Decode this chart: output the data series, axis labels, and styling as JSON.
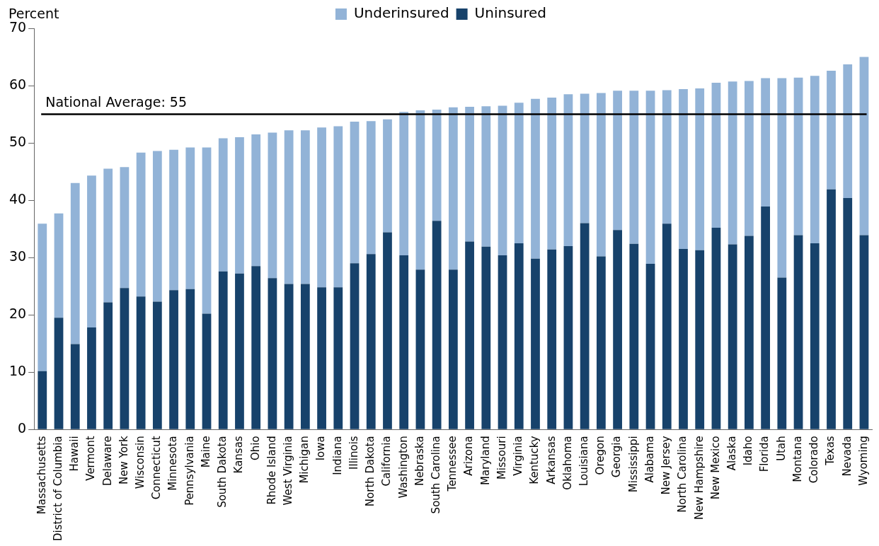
{
  "chart_data": {
    "type": "bar",
    "stacked": true,
    "ylabel": "Percent",
    "legend": "top",
    "categories": [
      "Massachusetts",
      "District of Columbia",
      "Hawaii",
      "Vermont",
      "Delaware",
      "New York",
      "Wisconsin",
      "Connecticut",
      "Minnesota",
      "Pennsylvania",
      "Maine",
      "South Dakota",
      "Kansas",
      "Ohio",
      "Rhode Island",
      "West Virginia",
      "Michigan",
      "Iowa",
      "Indiana",
      "Illinois",
      "North Dakota",
      "California",
      "Washington",
      "Nebraska",
      "South Carolina",
      "Tennessee",
      "Arizona",
      "Maryland",
      "Missouri",
      "Virginia",
      "Kentucky",
      "Arkansas",
      "Oklahoma",
      "Louisiana",
      "Oregon",
      "Georgia",
      "Mississippi",
      "Alabama",
      "New Jersey",
      "North Carolina",
      "New Hampshire",
      "New Mexico",
      "Alaska",
      "Idaho",
      "Florida",
      "Utah",
      "Montana",
      "Colorado",
      "Texas",
      "Nevada",
      "Wyoming"
    ],
    "series": [
      {
        "name": "Uninsured",
        "color": "#17426b",
        "values": [
          10.2,
          19.5,
          14.9,
          17.8,
          22.2,
          24.7,
          23.2,
          22.3,
          24.3,
          24.5,
          20.2,
          27.6,
          27.2,
          28.5,
          26.4,
          25.4,
          25.4,
          24.8,
          24.8,
          29.0,
          30.6,
          34.4,
          30.4,
          27.9,
          36.4,
          27.9,
          32.8,
          31.9,
          30.4,
          32.5,
          29.8,
          31.4,
          32.0,
          36.0,
          30.2,
          34.8,
          32.4,
          28.9,
          35.9,
          31.5,
          31.3,
          35.2,
          32.3,
          33.8,
          38.9,
          26.5,
          33.9,
          32.5,
          41.9,
          40.4,
          33.9
        ]
      },
      {
        "name": "Underinsured",
        "color": "#92b3d7",
        "values": [
          25.7,
          18.2,
          28.1,
          26.5,
          23.3,
          21.1,
          25.1,
          26.3,
          24.5,
          24.7,
          29.0,
          23.2,
          23.8,
          23.0,
          25.4,
          26.8,
          26.8,
          27.9,
          28.1,
          24.7,
          23.2,
          19.7,
          25.0,
          27.8,
          19.4,
          28.3,
          23.5,
          24.5,
          26.1,
          24.5,
          27.9,
          26.5,
          26.5,
          22.6,
          28.5,
          24.3,
          26.7,
          30.2,
          23.3,
          27.9,
          28.2,
          25.3,
          28.4,
          27.0,
          22.4,
          34.8,
          27.5,
          29.2,
          20.7,
          23.3,
          31.1
        ]
      }
    ],
    "ylim": [
      0,
      70
    ],
    "yticks": [
      0,
      10,
      20,
      30,
      40,
      50,
      60,
      70
    ],
    "grid": false,
    "ref_lines": [
      {
        "axis": "y",
        "value": 55,
        "label": "National Average: 55",
        "color": "#000000"
      }
    ]
  }
}
